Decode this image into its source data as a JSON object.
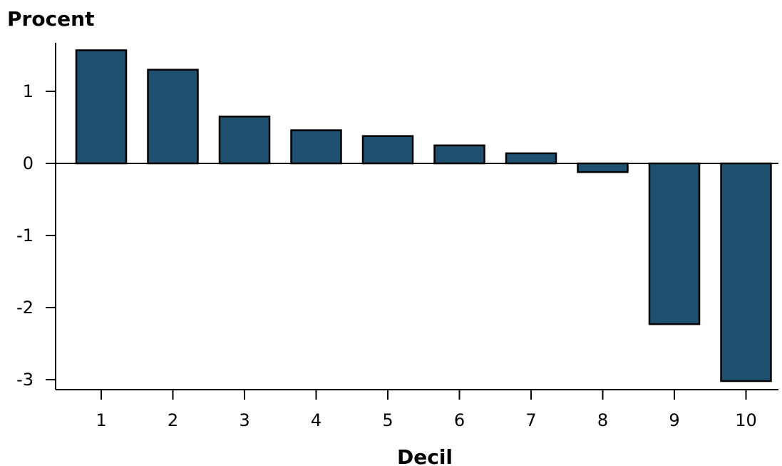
{
  "chart_data": {
    "type": "bar",
    "title": "",
    "ylabel": "Procent",
    "xlabel": "Decil",
    "categories": [
      "1",
      "2",
      "3",
      "4",
      "5",
      "6",
      "7",
      "8",
      "9",
      "10"
    ],
    "values": [
      1.57,
      1.3,
      0.65,
      0.46,
      0.38,
      0.25,
      0.14,
      -0.12,
      -2.23,
      -3.02
    ],
    "ylim": [
      -3.15,
      1.7
    ],
    "yticks": [
      1,
      0,
      -1,
      -2,
      -3
    ],
    "ytick_labels": [
      "1",
      "0",
      "-1",
      "-2",
      "-3"
    ],
    "bar_color": "#1f5070",
    "grid": false,
    "legend": "none"
  }
}
